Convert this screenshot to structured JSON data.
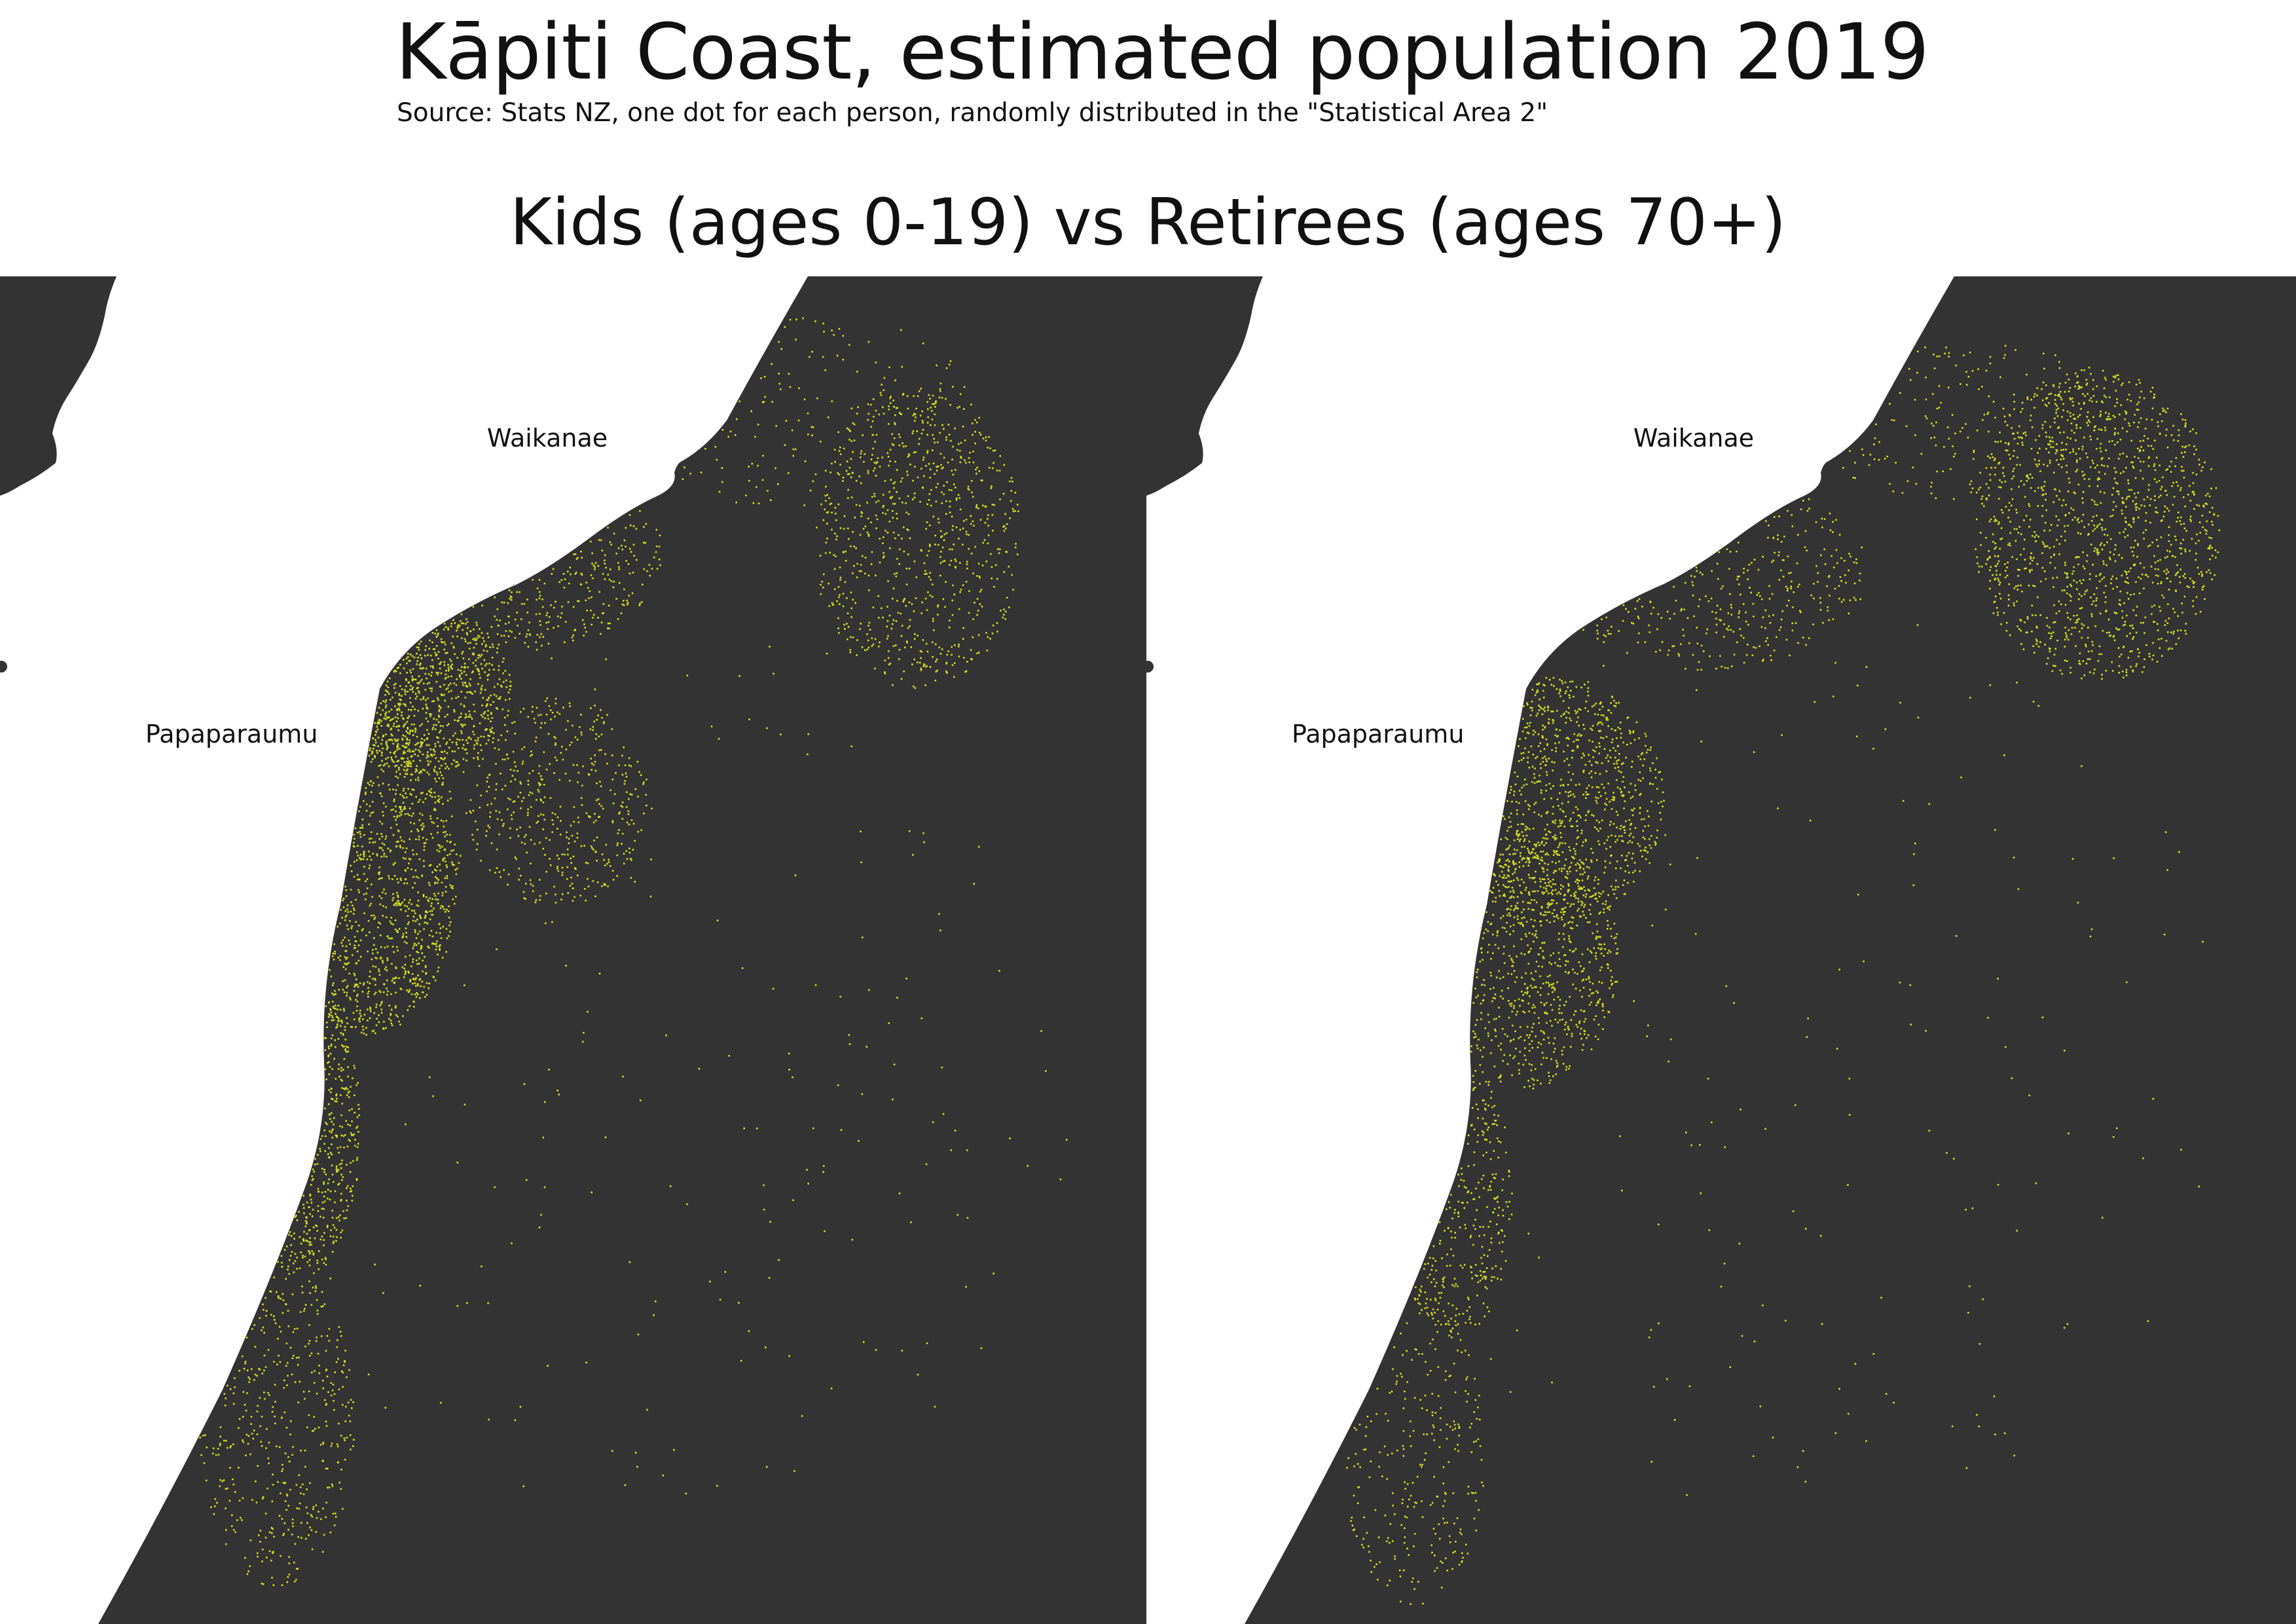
{
  "header": {
    "title": "Kāpiti Coast, estimated population 2019",
    "subtitle": "Source: Stats NZ, one dot for each person, randomly distributed in the \"Statistical Area 2\"",
    "comparison": "Kids (ages 0-19) vs Retirees (ages 70+)"
  },
  "map": {
    "land_color": "#333333",
    "sea_color": "#ffffff",
    "dot_color": "#d8e022",
    "places": [
      "Waikanae",
      "Papaparaumu"
    ]
  },
  "panels": [
    {
      "group": "Kids (ages 0-19)"
    },
    {
      "group": "Retirees (ages 70+)"
    }
  ]
}
